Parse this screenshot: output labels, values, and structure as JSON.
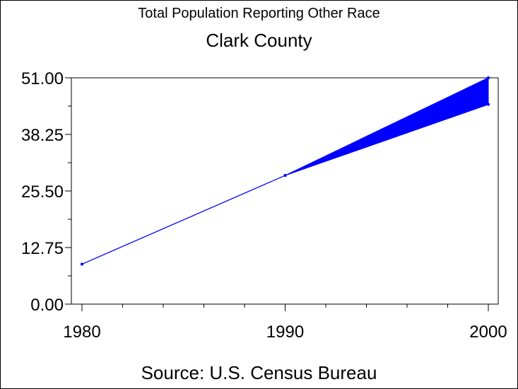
{
  "chart_data": {
    "type": "line",
    "title": "Total Population Reporting Other Race",
    "subtitle": "Clark County",
    "source": "Source: U.S. Census Bureau",
    "xlabel": "",
    "ylabel": "",
    "xlim": [
      1980,
      2000
    ],
    "ylim": [
      0,
      51
    ],
    "x_ticks": [
      "1980",
      "1990",
      "2000"
    ],
    "y_ticks": [
      "0.00",
      "12.75",
      "25.50",
      "38.25",
      "51.00"
    ],
    "y_tick_values": [
      0,
      12.75,
      25.5,
      38.25,
      51
    ],
    "series": [
      {
        "x": [
          1980,
          1990,
          2000
        ],
        "values": [
          9,
          29,
          51
        ]
      },
      {
        "x": [
          1980,
          1990,
          2000
        ],
        "values": [
          9,
          29,
          45
        ]
      }
    ],
    "band_between_series": true,
    "colors": {
      "line": "#0000ff",
      "band": "#0000ff",
      "axis": "#000000"
    },
    "grid": false
  }
}
